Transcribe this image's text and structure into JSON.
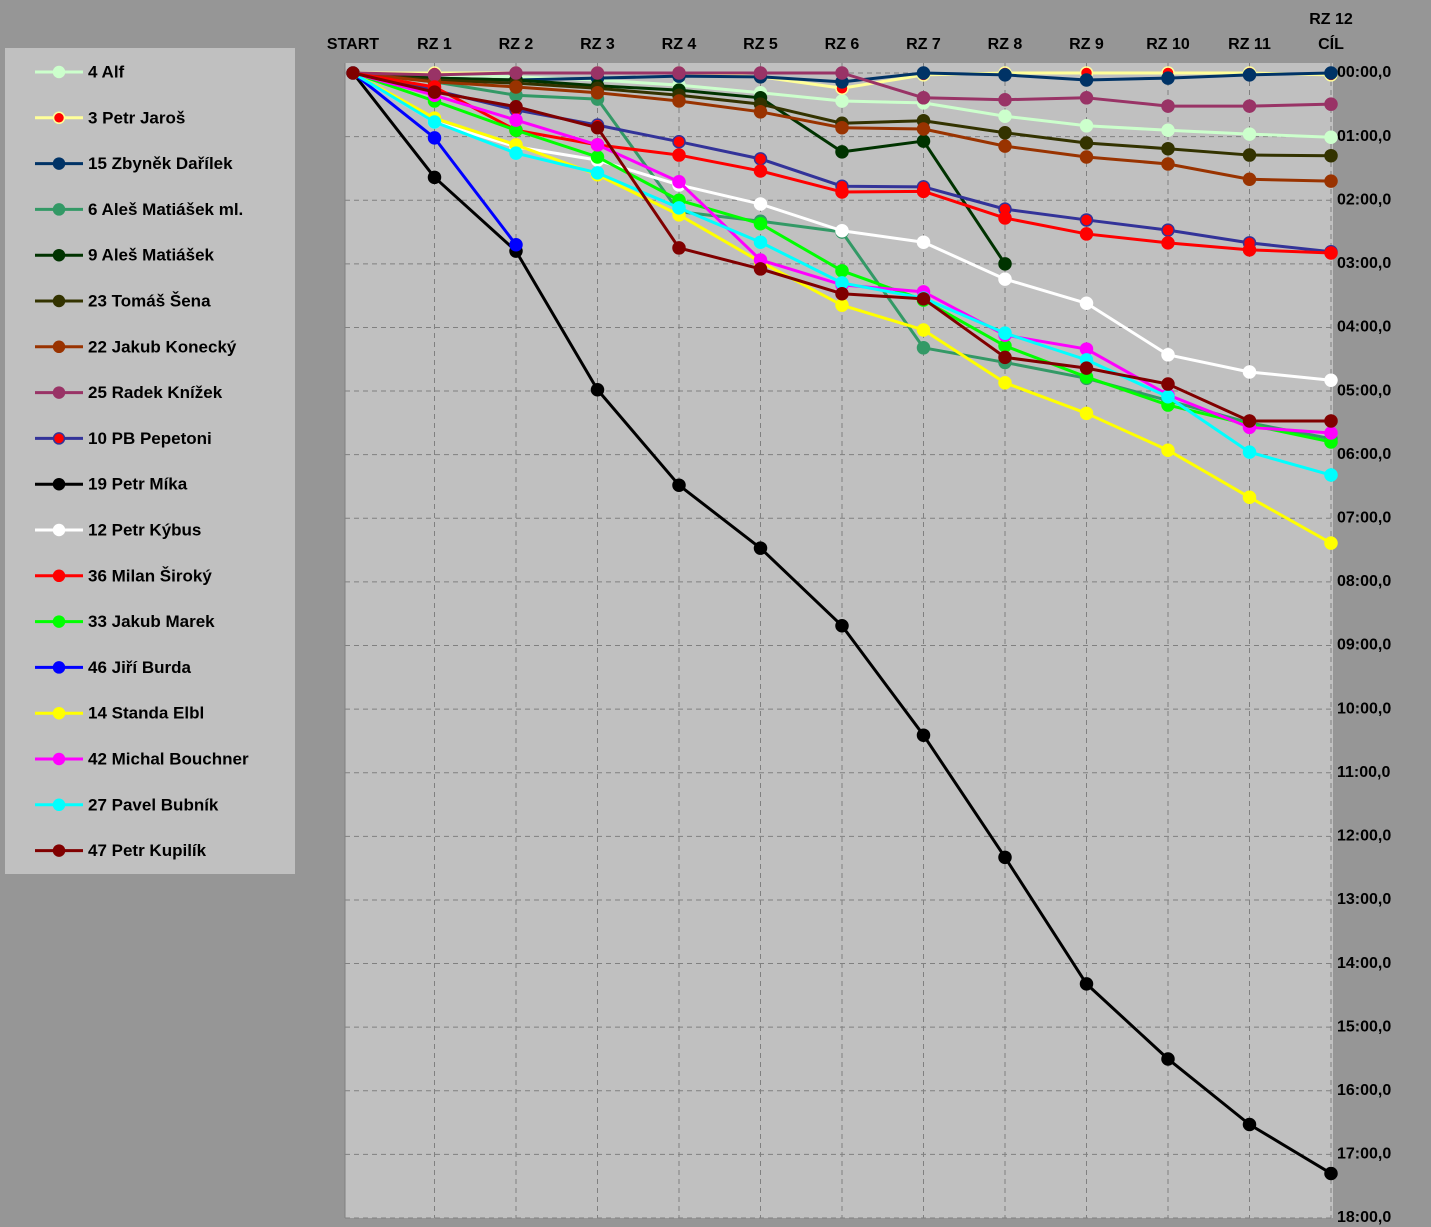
{
  "chart_data": {
    "type": "line",
    "categories": [
      "START",
      "RZ 1",
      "RZ 2",
      "RZ 3",
      "RZ 4",
      "RZ 5",
      "RZ 6",
      "RZ 7",
      "RZ 8",
      "RZ 9",
      "RZ 10",
      "RZ 11",
      "RZ 12\nCÍL"
    ],
    "ylim": [
      0,
      18
    ],
    "y_reversed": true,
    "grid": true,
    "legend": "left",
    "yticks": [
      {
        "value": 0,
        "label": "00:00,0"
      },
      {
        "value": 1,
        "label": "01:00,0"
      },
      {
        "value": 2,
        "label": "02:00,0"
      },
      {
        "value": 3,
        "label": "03:00,0"
      },
      {
        "value": 4,
        "label": "04:00,0"
      },
      {
        "value": 5,
        "label": "05:00,0"
      },
      {
        "value": 6,
        "label": "06:00,0"
      },
      {
        "value": 7,
        "label": "07:00,0"
      },
      {
        "value": 8,
        "label": "08:00,0"
      },
      {
        "value": 9,
        "label": "09:00,0"
      },
      {
        "value": 10,
        "label": "10:00,0"
      },
      {
        "value": 11,
        "label": "11:00,0"
      },
      {
        "value": 12,
        "label": "12:00,0"
      },
      {
        "value": 13,
        "label": "13:00,0"
      },
      {
        "value": 14,
        "label": "14:00,0"
      },
      {
        "value": 15,
        "label": "15:00,0"
      },
      {
        "value": 16,
        "label": "16:00,0"
      },
      {
        "value": 17,
        "label": "17:00,0"
      },
      {
        "value": 18,
        "label": "18:00,0"
      }
    ],
    "series": [
      {
        "name": "4 Alf",
        "color": "#ccffcc",
        "values": [
          0,
          0.03,
          0.06,
          0.11,
          0.19,
          0.31,
          0.44,
          0.47,
          0.68,
          0.83,
          0.9,
          0.96,
          1.01
        ]
      },
      {
        "name": "3 Petr Jaroš",
        "color": "#ffff99",
        "marker_color": "#ff0000",
        "values": [
          0,
          0,
          0,
          0,
          0,
          0.06,
          0.24,
          0.03,
          0,
          0,
          0,
          0,
          0.03
        ]
      },
      {
        "name": "15 Zbyněk Dařílek",
        "color": "#003366",
        "values": [
          0,
          0.08,
          0.11,
          0.08,
          0.05,
          0.06,
          0.14,
          0,
          0.03,
          0.11,
          0.08,
          0.03,
          0
        ]
      },
      {
        "name": "6 Aleš Matiášek ml.",
        "color": "#339966",
        "values": [
          0,
          0.14,
          0.35,
          0.41,
          2.18,
          2.33,
          2.5,
          4.32,
          4.55,
          4.8,
          5.15,
          5.5,
          5.75
        ]
      },
      {
        "name": "9 Aleš Matiášek",
        "color": "#003300",
        "values": [
          0,
          0.08,
          0.11,
          0.2,
          0.27,
          0.39,
          1.24,
          1.07,
          3.0,
          null,
          null,
          null,
          null
        ]
      },
      {
        "name": "23 Tomáš Šena",
        "color": "#333300",
        "values": [
          0,
          0.11,
          0.16,
          0.24,
          0.35,
          0.49,
          0.79,
          0.75,
          0.94,
          1.1,
          1.19,
          1.29,
          1.3
        ]
      },
      {
        "name": "22 Jakub Konecký",
        "color": "#993300",
        "values": [
          0,
          0.14,
          0.22,
          0.31,
          0.44,
          0.61,
          0.86,
          0.88,
          1.15,
          1.32,
          1.43,
          1.67,
          1.7
        ]
      },
      {
        "name": "25 Radek Knížek",
        "color": "#993366",
        "values": [
          0,
          0.03,
          0,
          0,
          0,
          0,
          0,
          0.39,
          0.42,
          0.39,
          0.52,
          0.52,
          0.49
        ]
      },
      {
        "name": "10 PB Pepetoni",
        "color": "#333399",
        "marker_color": "#ff0000",
        "values": [
          0,
          0.27,
          0.58,
          0.82,
          1.08,
          1.35,
          1.78,
          1.79,
          2.14,
          2.31,
          2.47,
          2.67,
          2.81
        ]
      },
      {
        "name": "19 Petr Míka",
        "color": "#000000",
        "values": [
          0,
          1.64,
          2.8,
          4.98,
          6.48,
          7.47,
          8.69,
          10.41,
          12.33,
          14.32,
          15.5,
          16.53,
          17.3
        ]
      },
      {
        "name": "12 Petr Kýbus",
        "color": "#ffffff",
        "values": [
          0,
          0.77,
          1.16,
          1.37,
          1.76,
          2.06,
          2.48,
          2.66,
          3.24,
          3.62,
          4.43,
          4.7,
          4.83
        ]
      },
      {
        "name": "36 Milan Široký",
        "color": "#ff0000",
        "values": [
          0,
          0.22,
          0.9,
          1.13,
          1.29,
          1.54,
          1.87,
          1.86,
          2.28,
          2.53,
          2.67,
          2.78,
          2.83
        ]
      },
      {
        "name": "33 Jakub Marek",
        "color": "#00ff00",
        "values": [
          0,
          0.44,
          0.9,
          1.32,
          2.0,
          2.37,
          3.11,
          3.57,
          4.29,
          4.78,
          5.22,
          5.53,
          5.8
        ]
      },
      {
        "name": "46 Jiří Burda",
        "color": "#0000ff",
        "values": [
          0,
          1.02,
          2.7,
          null,
          null,
          null,
          null,
          null,
          null,
          null,
          null,
          null,
          null
        ]
      },
      {
        "name": "14 Standa Elbl",
        "color": "#ffff00",
        "values": [
          0,
          0.71,
          1.13,
          1.6,
          2.23,
          2.97,
          3.65,
          4.04,
          4.87,
          5.35,
          5.93,
          6.67,
          7.39
        ]
      },
      {
        "name": "42 Michal Bouchner",
        "color": "#ff00ff",
        "values": [
          0,
          0.35,
          0.74,
          1.13,
          1.71,
          2.94,
          3.33,
          3.44,
          4.12,
          4.34,
          5.06,
          5.57,
          5.66
        ]
      },
      {
        "name": "27 Pavel Bubník",
        "color": "#00ffff",
        "values": [
          0,
          0.77,
          1.26,
          1.57,
          2.12,
          2.66,
          3.3,
          3.54,
          4.09,
          4.51,
          5.09,
          5.96,
          6.32
        ]
      },
      {
        "name": "47 Petr Kupilík",
        "color": "#800000",
        "values": [
          0,
          0.3,
          0.53,
          0.86,
          2.75,
          3.08,
          3.47,
          3.55,
          4.47,
          4.64,
          4.89,
          5.47,
          5.47
        ]
      }
    ]
  }
}
